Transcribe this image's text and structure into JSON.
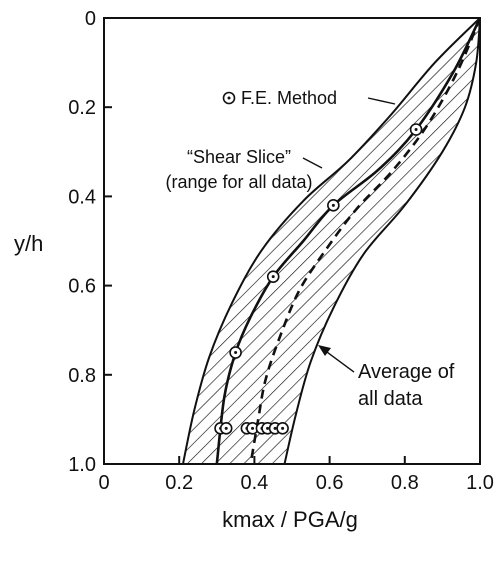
{
  "chart_data": {
    "type": "line",
    "xlabel": "kmax / PGA/g",
    "ylabel": "y/h",
    "xlim": [
      0,
      1.0
    ],
    "ylim": [
      0,
      1.0
    ],
    "y_inverted": true,
    "grid": false,
    "xticks": [
      "0",
      "0.2",
      "0.4",
      "0.6",
      "0.8",
      "1.0"
    ],
    "yticks": [
      "0",
      "0.2",
      "0.4",
      "0.6",
      "0.8",
      "1.0"
    ],
    "band": {
      "label": "“Shear Slice” (range for all data)",
      "left": [
        [
          1.0,
          0.0
        ],
        [
          0.88,
          0.1
        ],
        [
          0.76,
          0.22
        ],
        [
          0.65,
          0.32
        ],
        [
          0.53,
          0.41
        ],
        [
          0.42,
          0.52
        ],
        [
          0.34,
          0.64
        ],
        [
          0.28,
          0.76
        ],
        [
          0.24,
          0.88
        ],
        [
          0.21,
          1.0
        ]
      ],
      "right": [
        [
          1.0,
          0.0
        ],
        [
          0.99,
          0.1
        ],
        [
          0.96,
          0.2
        ],
        [
          0.9,
          0.3
        ],
        [
          0.8,
          0.42
        ],
        [
          0.69,
          0.53
        ],
        [
          0.61,
          0.65
        ],
        [
          0.55,
          0.77
        ],
        [
          0.51,
          0.89
        ],
        [
          0.48,
          1.0
        ]
      ]
    },
    "series": [
      {
        "name": "F.E. Method",
        "style": "solid",
        "x": [
          1.0,
          0.93,
          0.83,
          0.73,
          0.61,
          0.53,
          0.45,
          0.39,
          0.35,
          0.32,
          0.3
        ],
        "y": [
          0.0,
          0.12,
          0.25,
          0.34,
          0.42,
          0.5,
          0.58,
          0.67,
          0.75,
          0.85,
          1.0
        ]
      },
      {
        "name": "Average of all data",
        "style": "dashed",
        "x": [
          1.0,
          0.94,
          0.86,
          0.77,
          0.67,
          0.59,
          0.52,
          0.47,
          0.43,
          0.41,
          0.39
        ],
        "y": [
          0.0,
          0.12,
          0.24,
          0.34,
          0.43,
          0.52,
          0.61,
          0.71,
          0.81,
          0.9,
          1.0
        ]
      }
    ],
    "fe_points": [
      {
        "x": 0.83,
        "y": 0.25
      },
      {
        "x": 0.61,
        "y": 0.42
      },
      {
        "x": 0.45,
        "y": 0.58
      },
      {
        "x": 0.35,
        "y": 0.75
      },
      {
        "x": 0.31,
        "y": 0.92
      },
      {
        "x": 0.325,
        "y": 0.92
      },
      {
        "x": 0.38,
        "y": 0.92
      },
      {
        "x": 0.395,
        "y": 0.92
      },
      {
        "x": 0.42,
        "y": 0.92
      },
      {
        "x": 0.435,
        "y": 0.92
      },
      {
        "x": 0.455,
        "y": 0.92
      },
      {
        "x": 0.475,
        "y": 0.92
      }
    ],
    "annotations": [
      {
        "key": "fe",
        "text": "F.E. Method",
        "marker": "circled-dot"
      },
      {
        "key": "shear1",
        "text": "“Shear Slice”"
      },
      {
        "key": "shear2",
        "text": "(range for all data)"
      },
      {
        "key": "avg1",
        "text": "Average of"
      },
      {
        "key": "avg2",
        "text": "all data"
      }
    ]
  }
}
